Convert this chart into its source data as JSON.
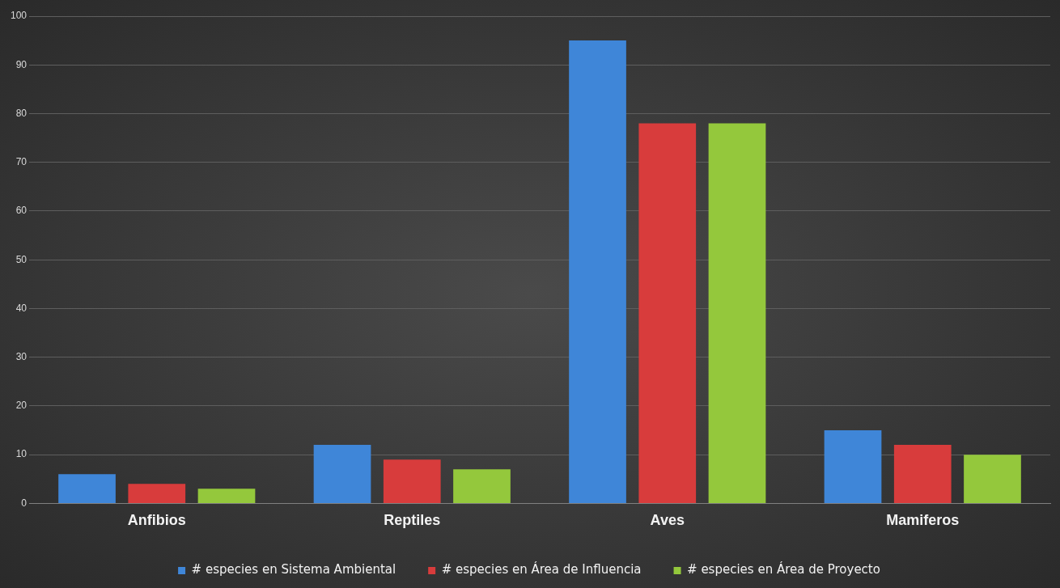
{
  "chart_data": {
    "type": "bar",
    "categories": [
      "Anfibios",
      "Reptiles",
      "Aves",
      "Mamiferos"
    ],
    "series": [
      {
        "name": "# especies en Sistema Ambiental",
        "color": "#3f86d8",
        "values": [
          6,
          12,
          95,
          15
        ]
      },
      {
        "name": "# especies en Área de Influencia",
        "color": "#d83c3c",
        "values": [
          4,
          9,
          78,
          12
        ]
      },
      {
        "name": "# especies en Área de Proyecto",
        "color": "#94c83c",
        "values": [
          3,
          7,
          78,
          10
        ]
      }
    ],
    "ylim": [
      0,
      100
    ],
    "yticks": [
      0,
      10,
      20,
      30,
      40,
      50,
      60,
      70,
      80,
      90,
      100
    ],
    "grid": "y",
    "legend": "bottom"
  }
}
